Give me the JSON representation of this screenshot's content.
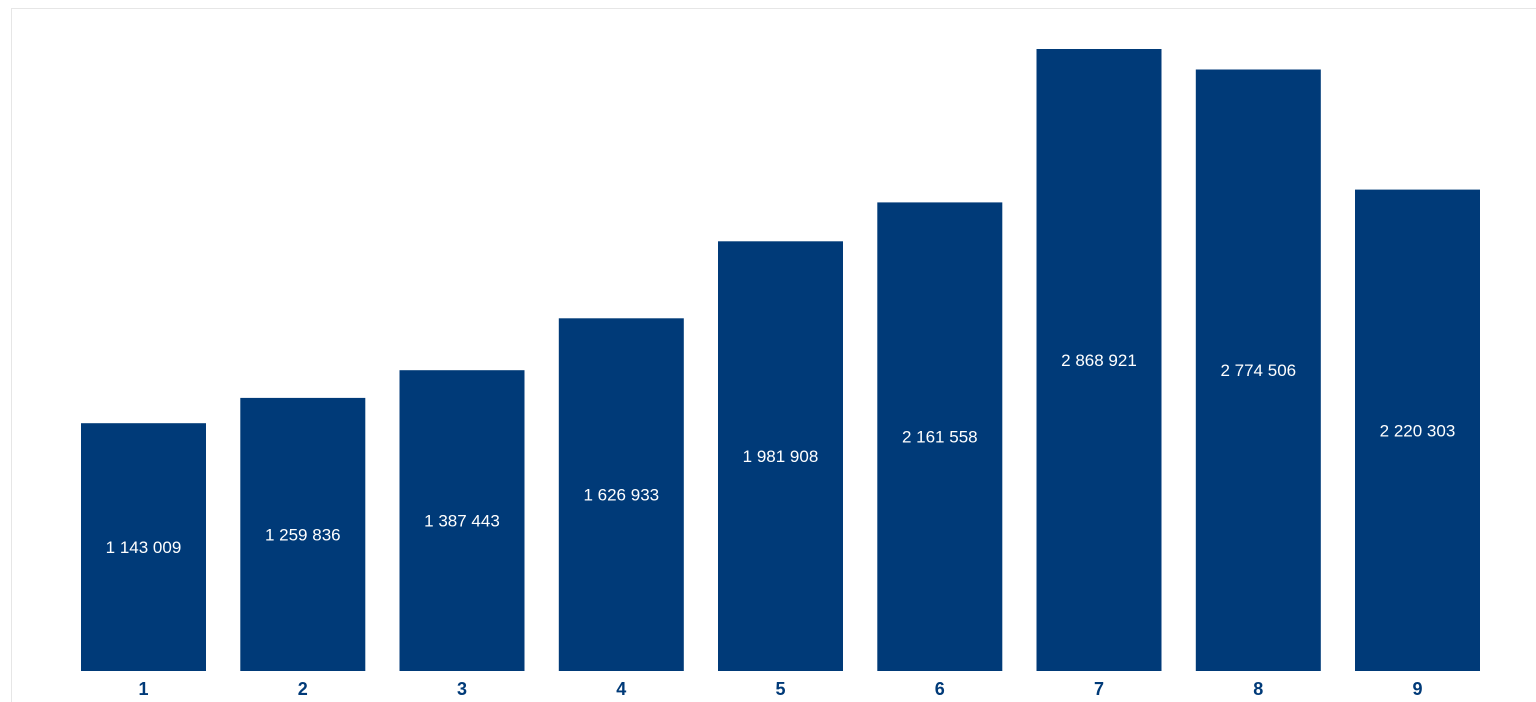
{
  "colors": {
    "bar": "#003a78",
    "bar_label": "#ffffff",
    "tick_label": "#003a78",
    "background": "#ffffff"
  },
  "chart_data": {
    "type": "bar",
    "categories": [
      "1",
      "2",
      "3",
      "4",
      "5",
      "6",
      "7",
      "8",
      "9"
    ],
    "values": [
      1143009,
      1259836,
      1387443,
      1626933,
      1981908,
      2161558,
      2868921,
      2774506,
      2220303
    ],
    "value_labels": [
      "1 143 009",
      "1 259 836",
      "1 387 443",
      "1 626 933",
      "1 981 908",
      "2 161 558",
      "2 868 921",
      "2 774 506",
      "2 220 303"
    ],
    "ylim": [
      0,
      2868921
    ],
    "grid": false,
    "legend": "none"
  }
}
